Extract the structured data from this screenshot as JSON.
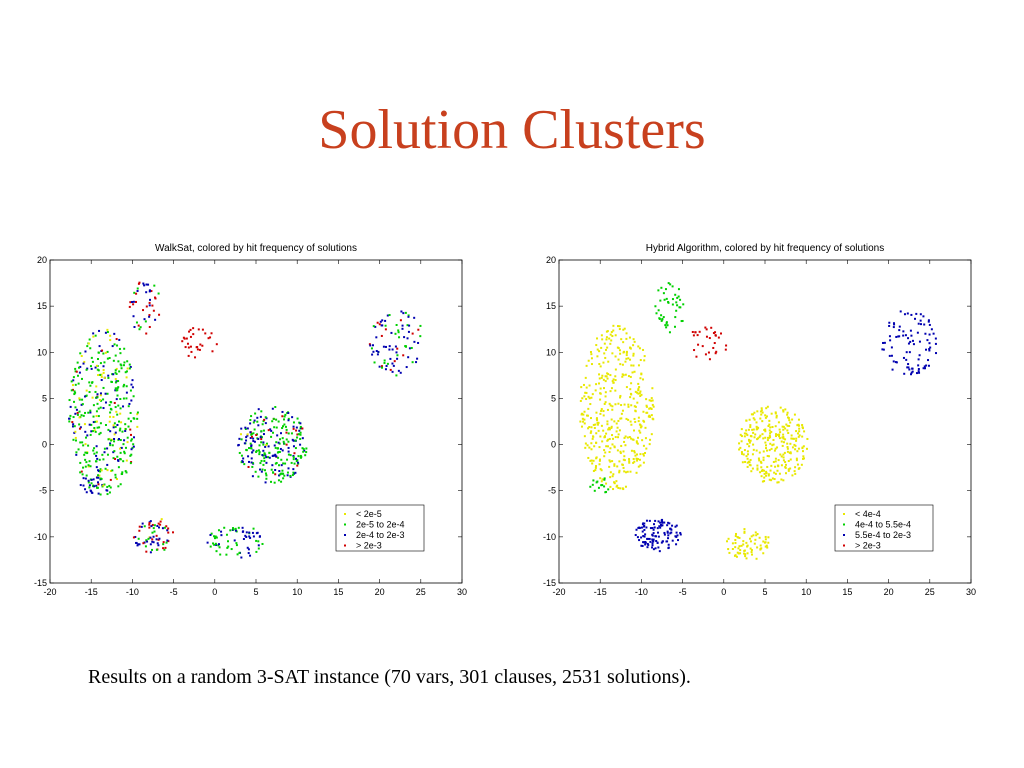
{
  "slide": {
    "title": "Solution Clusters",
    "caption": "Results on a random 3-SAT instance (70 vars, 301 clauses, 2531 solutions)."
  },
  "colors": {
    "title": "#c8401e",
    "yellow": "#e8e800",
    "green": "#00d000",
    "blue": "#0000b0",
    "red": "#d00000"
  },
  "chart_data": [
    {
      "type": "scatter",
      "title": "WalkSat, colored by hit frequency of solutions",
      "xlim": [
        -20,
        30
      ],
      "ylim": [
        -15,
        20
      ],
      "xticks": [
        -20,
        -15,
        -10,
        -5,
        0,
        5,
        10,
        15,
        20,
        25,
        30
      ],
      "yticks": [
        -15,
        -10,
        -5,
        0,
        5,
        10,
        15,
        20
      ],
      "grid": false,
      "legend_position": "bottom-right",
      "legend": [
        {
          "label": "< 2e-5",
          "color": "#e8e800"
        },
        {
          "label": "2e-5 to 2e-4",
          "color": "#00d000"
        },
        {
          "label": "2e-4 to 2e-3",
          "color": "#0000b0"
        },
        {
          "label": "> 2e-3",
          "color": "#d00000"
        }
      ],
      "clusters": [
        {
          "cx": -13.5,
          "cy": 3.5,
          "rx": 4.2,
          "ry": 9.0,
          "n": 420,
          "mix": [
            0.15,
            0.55,
            0.25,
            0.05
          ]
        },
        {
          "cx": -8.5,
          "cy": 15.0,
          "rx": 2.0,
          "ry": 3.0,
          "n": 45,
          "mix": [
            0.0,
            0.2,
            0.4,
            0.4
          ]
        },
        {
          "cx": -2.0,
          "cy": 11.0,
          "rx": 2.5,
          "ry": 1.8,
          "n": 30,
          "mix": [
            0.0,
            0.0,
            0.0,
            1.0
          ]
        },
        {
          "cx": 22.0,
          "cy": 11.0,
          "rx": 3.5,
          "ry": 3.6,
          "n": 90,
          "mix": [
            0.0,
            0.35,
            0.5,
            0.15
          ]
        },
        {
          "cx": 7.0,
          "cy": 0.0,
          "rx": 4.2,
          "ry": 4.2,
          "n": 280,
          "mix": [
            0.02,
            0.55,
            0.35,
            0.08
          ]
        },
        {
          "cx": -7.5,
          "cy": -9.8,
          "rx": 2.6,
          "ry": 1.9,
          "n": 70,
          "mix": [
            0.05,
            0.3,
            0.4,
            0.25
          ]
        },
        {
          "cx": 2.5,
          "cy": -10.5,
          "rx": 3.5,
          "ry": 1.8,
          "n": 70,
          "mix": [
            0.0,
            0.6,
            0.4,
            0.0
          ]
        },
        {
          "cx": -15.5,
          "cy": -4.5,
          "rx": 1.5,
          "ry": 1.0,
          "n": 15,
          "mix": [
            0.0,
            0.0,
            1.0,
            0.0
          ]
        }
      ]
    },
    {
      "type": "scatter",
      "title": "Hybrid Algorithm, colored by hit frequency of solutions",
      "xlim": [
        -20,
        30
      ],
      "ylim": [
        -15,
        20
      ],
      "xticks": [
        -20,
        -15,
        -10,
        -5,
        0,
        5,
        10,
        15,
        20,
        25,
        30
      ],
      "yticks": [
        -15,
        -10,
        -5,
        0,
        5,
        10,
        15,
        20
      ],
      "grid": false,
      "legend_position": "bottom-right",
      "legend": [
        {
          "label": "< 4e-4",
          "color": "#e8e800"
        },
        {
          "label": "4e-4 to 5.5e-4",
          "color": "#00d000"
        },
        {
          "label": "5.5e-4 to 2e-3",
          "color": "#0000b0"
        },
        {
          "label": "> 2e-3",
          "color": "#d00000"
        }
      ],
      "clusters": [
        {
          "cx": -13.0,
          "cy": 4.0,
          "rx": 4.5,
          "ry": 9.0,
          "n": 420,
          "mix": [
            1.0,
            0.0,
            0.0,
            0.0
          ]
        },
        {
          "cx": -6.5,
          "cy": 15.0,
          "rx": 1.8,
          "ry": 3.0,
          "n": 45,
          "mix": [
            0.0,
            1.0,
            0.0,
            0.0
          ]
        },
        {
          "cx": -2.0,
          "cy": 11.0,
          "rx": 2.5,
          "ry": 1.8,
          "n": 30,
          "mix": [
            0.0,
            0.0,
            0.0,
            1.0
          ]
        },
        {
          "cx": 22.5,
          "cy": 11.0,
          "rx": 3.5,
          "ry": 3.6,
          "n": 90,
          "mix": [
            0.0,
            0.0,
            1.0,
            0.0
          ]
        },
        {
          "cx": 6.0,
          "cy": 0.0,
          "rx": 4.2,
          "ry": 4.2,
          "n": 280,
          "mix": [
            1.0,
            0.0,
            0.0,
            0.0
          ]
        },
        {
          "cx": -8.0,
          "cy": -9.8,
          "rx": 2.8,
          "ry": 1.8,
          "n": 110,
          "mix": [
            0.0,
            0.0,
            1.0,
            0.0
          ]
        },
        {
          "cx": 3.0,
          "cy": -10.8,
          "rx": 2.8,
          "ry": 1.7,
          "n": 70,
          "mix": [
            1.0,
            0.0,
            0.0,
            0.0
          ]
        },
        {
          "cx": -15.0,
          "cy": -4.5,
          "rx": 1.3,
          "ry": 1.0,
          "n": 15,
          "mix": [
            0.0,
            1.0,
            0.0,
            0.0
          ]
        }
      ]
    }
  ]
}
